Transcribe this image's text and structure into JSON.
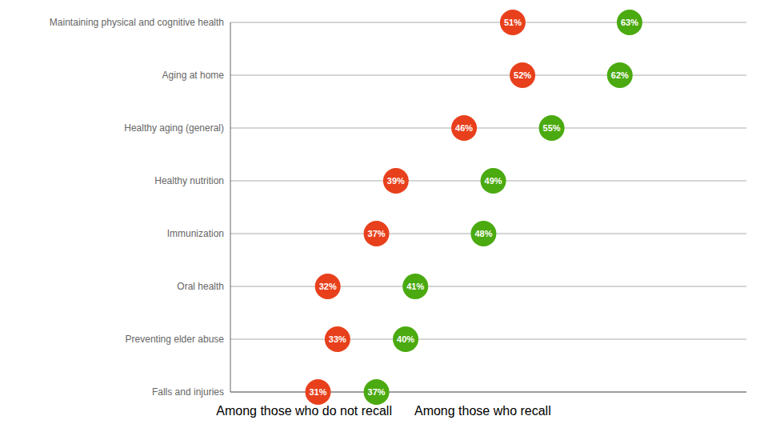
{
  "chart_data": {
    "type": "dot",
    "orientation": "horizontal",
    "categories": [
      "Maintaining physical and cognitive health",
      "Aging at home",
      "Healthy aging (general)",
      "Healthy nutrition",
      "Immunization",
      "Oral health",
      "Preventing elder abuse",
      "Falls and injuries"
    ],
    "series": [
      {
        "name": "Among those who do not recall",
        "color": "#e8401c",
        "values": [
          51,
          52,
          46,
          39,
          37,
          32,
          33,
          31
        ],
        "value_labels": [
          "51%",
          "52%",
          "46%",
          "39%",
          "37%",
          "32%",
          "33%",
          "31%"
        ]
      },
      {
        "name": "Among those who recall",
        "color": "#4aaa10",
        "values": [
          63,
          62,
          55,
          49,
          48,
          41,
          40,
          37
        ],
        "value_labels": [
          "63%",
          "62%",
          "55%",
          "49%",
          "48%",
          "41%",
          "40%",
          "37%"
        ]
      }
    ],
    "xlim": [
      22,
      75
    ],
    "grid": true,
    "data_labels": true,
    "tick_labels": "y",
    "legend": "bottom"
  }
}
